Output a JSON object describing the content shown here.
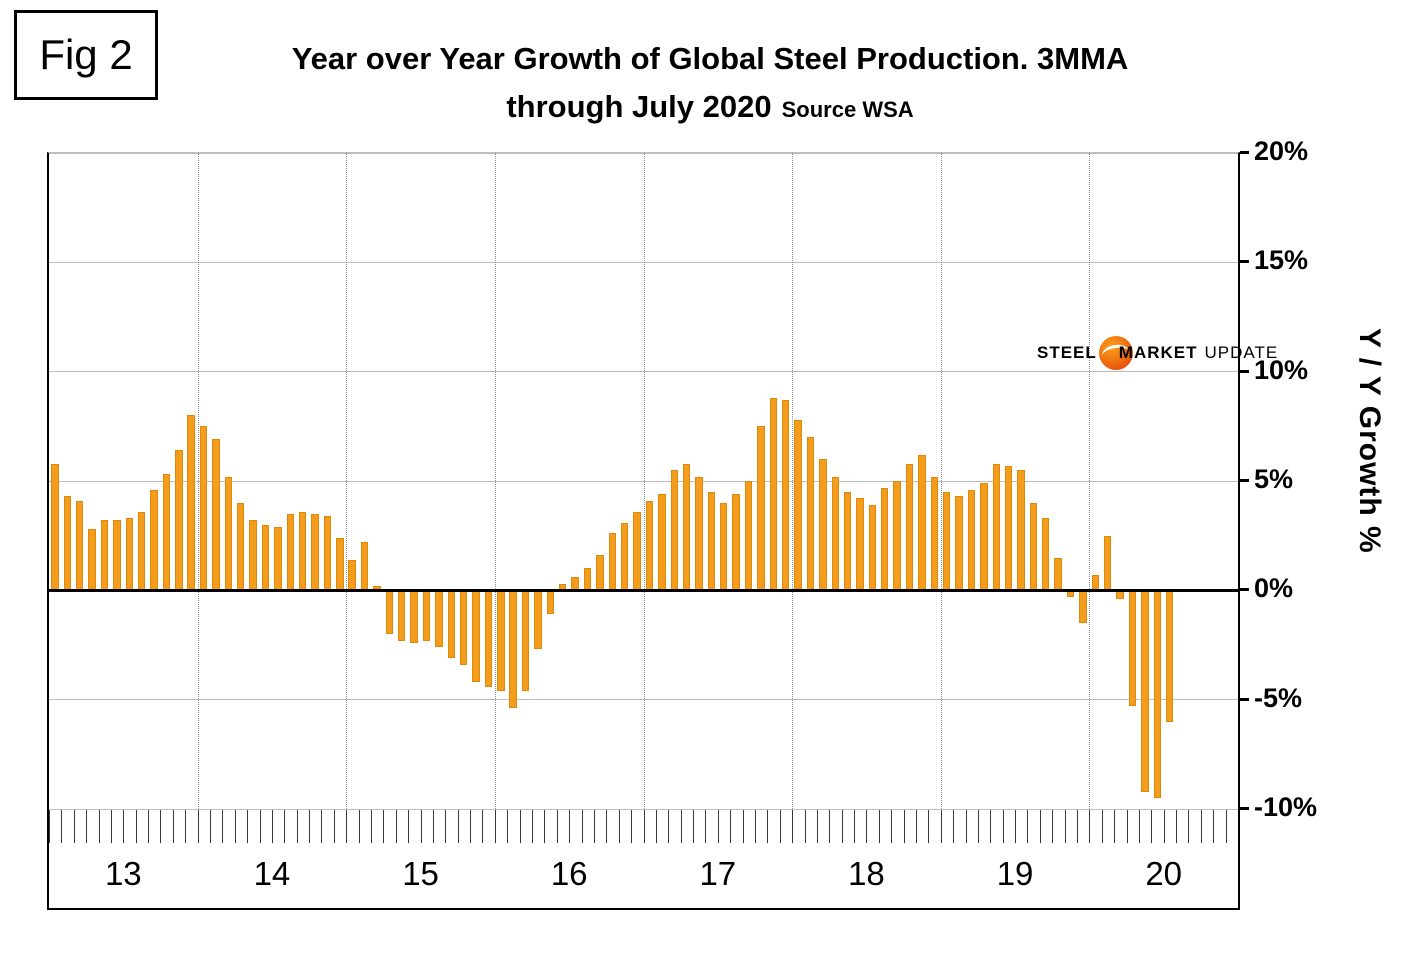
{
  "figure_label": "Fig 2",
  "title_line1": "Year over Year Growth of Global Steel Production. 3MMA",
  "title_line2": "through July 2020",
  "source": "Source WSA",
  "logo": {
    "part1": "STEEL",
    "part2": "MARKET",
    "part3": "UPDATE",
    "blue": "#1a4c8c",
    "gray": "#97a8bd",
    "orange": "#ef6a10"
  },
  "colors": {
    "bar": "#f49d1d",
    "bar_border": "#dd8a0c",
    "zero_line": "#000000",
    "grid": "#bdbdbd"
  },
  "chart_data": {
    "type": "bar",
    "title": "Year over Year Growth of Global Steel Production. 3MMA through July 2020",
    "source": "WSA",
    "xlabel": "",
    "ylabel": "Y / Y Growth %",
    "ylim": [
      -10,
      20
    ],
    "grid": true,
    "y_ticks": [
      "20%",
      "15%",
      "10%",
      "5%",
      "0%",
      "-5%",
      "-10%"
    ],
    "y_tick_values": [
      20,
      15,
      10,
      5,
      0,
      -5,
      -10
    ],
    "years": [
      "13",
      "14",
      "15",
      "16",
      "17",
      "18",
      "19",
      "20"
    ],
    "start_month": "2013-01",
    "end_month": "2020-07",
    "months_per_year": 12,
    "total_month_slots": 96,
    "values": [
      5.8,
      4.3,
      4.1,
      2.8,
      3.2,
      3.2,
      3.3,
      3.6,
      4.6,
      5.3,
      6.4,
      8.0,
      7.5,
      6.9,
      5.2,
      4.0,
      3.2,
      3.0,
      2.9,
      3.5,
      3.6,
      3.5,
      3.4,
      2.4,
      1.4,
      2.2,
      0.2,
      -2.0,
      -2.3,
      -2.4,
      -2.3,
      -2.6,
      -3.1,
      -3.4,
      -4.2,
      -4.4,
      -4.6,
      -5.4,
      -4.6,
      -2.7,
      -1.1,
      0.3,
      0.6,
      1.0,
      1.6,
      2.6,
      3.1,
      3.6,
      4.1,
      4.4,
      5.5,
      5.8,
      5.2,
      4.5,
      4.0,
      4.4,
      5.0,
      7.5,
      8.8,
      8.7,
      7.8,
      7.0,
      6.0,
      5.2,
      4.5,
      4.2,
      3.9,
      4.7,
      5.0,
      5.8,
      6.2,
      5.2,
      4.5,
      4.3,
      4.6,
      4.9,
      5.8,
      5.7,
      5.5,
      4.0,
      3.3,
      1.5,
      -0.3,
      -1.5,
      0.7,
      2.5,
      -0.4,
      -5.3,
      -9.2,
      -9.5,
      -6.0
    ]
  }
}
